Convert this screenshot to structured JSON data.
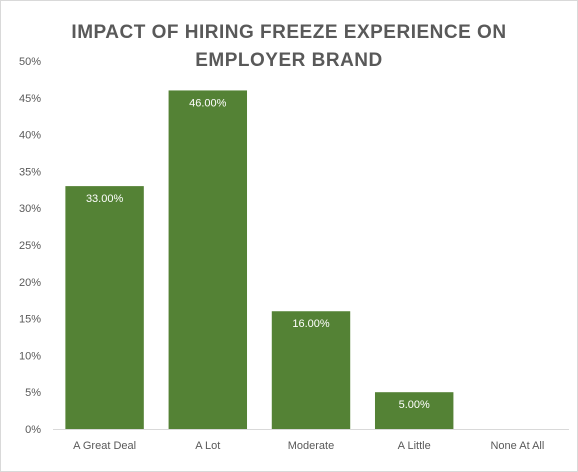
{
  "chart_data": {
    "type": "bar",
    "title_lines": [
      "IMPACT OF HIRING FREEZE EXPERIENCE ON",
      "EMPLOYER BRAND"
    ],
    "categories": [
      "A Great Deal",
      "A Lot",
      "Moderate",
      "A Little",
      "None At All"
    ],
    "values": [
      33,
      46,
      16,
      5,
      0
    ],
    "data_labels": [
      "33.00%",
      "46.00%",
      "16.00%",
      "5.00%",
      ""
    ],
    "y_ticks": [
      "0%",
      "5%",
      "10%",
      "15%",
      "20%",
      "25%",
      "30%",
      "35%",
      "40%",
      "45%",
      "50%"
    ],
    "ylim": [
      0,
      50
    ],
    "grid": false,
    "legend": "none",
    "bar_color": "#548235"
  }
}
